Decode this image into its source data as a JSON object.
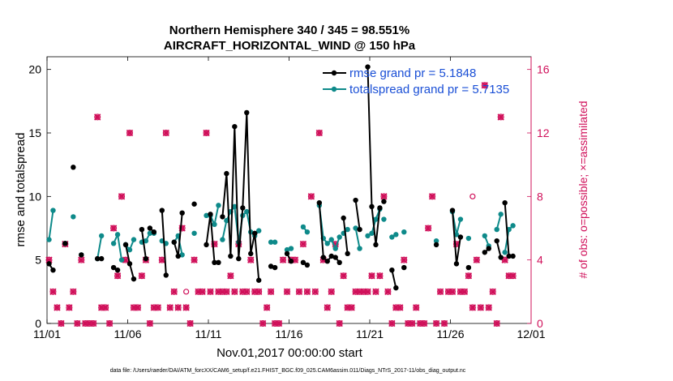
{
  "chart_data": {
    "type": "line",
    "title_line1": "Northern Hemisphere 340 / 345 = 98.551%",
    "title_line2": "AIRCRAFT_HORIZONTAL_WIND @ 150 hPa",
    "xlabel": "Nov.01,2017 00:00:00 start",
    "ylabel": "rmse and totalspread",
    "y2label": "# of obs: o=possible; ×=assimilated",
    "footer": "data file: /Users/raeder/DAI/ATM_forcXX/CAM6_setup/f.e21.FHIST_BGC.f09_025.CAM6assim.011/Diags_NTrS_2017-11/obs_diag_output.nc",
    "xlim": [
      0,
      30
    ],
    "ylim": [
      0,
      21
    ],
    "y2lim": [
      0,
      16.8
    ],
    "x_ticks": [
      0,
      5,
      10,
      15,
      20,
      25,
      30
    ],
    "x_tick_labels": [
      "11/01",
      "11/06",
      "11/11",
      "11/16",
      "11/21",
      "11/26",
      "12/01"
    ],
    "y_ticks": [
      0,
      5,
      10,
      15,
      20
    ],
    "y_tick_labels": [
      "0",
      "5",
      "10",
      "15",
      "20"
    ],
    "y2_ticks": [
      0,
      4,
      8,
      12,
      16
    ],
    "y2_tick_labels": [
      "0",
      "4",
      "8",
      "12",
      "16"
    ],
    "colors": {
      "rmse": "#000000",
      "spread": "#0e8a8a",
      "obs": "#d0105a",
      "legend_text": "#1a4fd6"
    },
    "series": [
      {
        "name": "rmse grand pr = 5.1848",
        "color": "#000000",
        "segments": [
          [
            [
              0.125,
              4.7
            ],
            [
              0.375,
              4.2
            ]
          ],
          [
            [
              1.125,
              6.3
            ]
          ],
          [
            [
              1.625,
              12.3
            ]
          ],
          [
            [
              2.125,
              5.4
            ]
          ],
          [
            [
              3.125,
              5.1
            ],
            [
              3.375,
              5.1
            ]
          ],
          [
            [
              4.125,
              4.4
            ],
            [
              4.375,
              4.2
            ]
          ],
          [
            [
              4.875,
              6.2
            ],
            [
              5.125,
              4.7
            ],
            [
              5.375,
              3.5
            ]
          ],
          [
            [
              5.875,
              7.4
            ],
            [
              6.125,
              5.1
            ]
          ],
          [
            [
              6.375,
              7.5
            ],
            [
              6.625,
              7.2
            ]
          ],
          [
            [
              7.125,
              8.9
            ],
            [
              7.375,
              3.8
            ]
          ],
          [
            [
              7.875,
              6.4
            ],
            [
              8.125,
              5.3
            ],
            [
              8.375,
              8.7
            ]
          ],
          [
            [
              9.125,
              9.4
            ]
          ],
          [
            [
              9.875,
              6.2
            ],
            [
              10.125,
              8.6
            ],
            [
              10.375,
              4.8
            ],
            [
              10.625,
              4.8
            ]
          ],
          [
            [
              10.875,
              8.4
            ],
            [
              11.125,
              11.8
            ],
            [
              11.375,
              5.3
            ],
            [
              11.625,
              15.5
            ],
            [
              11.875,
              5.1
            ],
            [
              12.125,
              9.1
            ],
            [
              12.375,
              16.6
            ],
            [
              12.625,
              5.5
            ],
            [
              12.875,
              7.1
            ],
            [
              13.125,
              3.4
            ]
          ],
          [
            [
              13.875,
              4.5
            ],
            [
              14.125,
              4.4
            ]
          ],
          [
            [
              14.875,
              5.5
            ],
            [
              15.125,
              4.9
            ]
          ],
          [
            [
              15.875,
              4.8
            ],
            [
              16.125,
              4.6
            ]
          ],
          [
            [
              16.875,
              9.5
            ],
            [
              17.125,
              5.2
            ],
            [
              17.375,
              4.9
            ],
            [
              17.625,
              5.3
            ],
            [
              17.875,
              5.2
            ],
            [
              18.125,
              4.8
            ]
          ],
          [
            [
              18.375,
              8.3
            ],
            [
              18.625,
              5.5
            ]
          ],
          [
            [
              19.125,
              9.7
            ],
            [
              19.375,
              7.4
            ]
          ],
          [
            [
              19.875,
              20.2
            ],
            [
              20.125,
              9.2
            ],
            [
              20.375,
              6.2
            ],
            [
              20.625,
              9.1
            ]
          ],
          [
            [
              20.875,
              9.6
            ]
          ],
          [
            [
              21.375,
              4.2
            ],
            [
              21.625,
              2.8
            ]
          ],
          [
            [
              22.125,
              4.4
            ]
          ],
          [
            [
              24.125,
              6.2
            ]
          ],
          [
            [
              25.125,
              8.9
            ],
            [
              25.375,
              4.7
            ],
            [
              25.625,
              6.8
            ]
          ],
          [
            [
              26.125,
              4.4
            ]
          ],
          [
            [
              27.125,
              5.6
            ],
            [
              27.375,
              5.9
            ]
          ],
          [
            [
              27.875,
              6.5
            ],
            [
              28.125,
              5.2
            ]
          ],
          [
            [
              28.375,
              9.5
            ],
            [
              28.625,
              5.3
            ],
            [
              28.875,
              5.3
            ]
          ]
        ]
      },
      {
        "name": "totalspread grand pr = 5.7135",
        "color": "#0e8a8a",
        "segments": [
          [
            [
              0.125,
              6.6
            ],
            [
              0.375,
              8.9
            ]
          ],
          [
            [
              1.125,
              6.3
            ]
          ],
          [
            [
              1.625,
              8.4
            ]
          ],
          [
            [
              2.125,
              5.4
            ]
          ],
          [
            [
              3.125,
              5.1
            ],
            [
              3.375,
              6.9
            ]
          ],
          [
            [
              4.125,
              6.3
            ],
            [
              4.375,
              7.0
            ],
            [
              4.625,
              5.0
            ]
          ],
          [
            [
              4.875,
              6.2
            ],
            [
              5.125,
              5.8
            ],
            [
              5.375,
              6.6
            ]
          ],
          [
            [
              5.875,
              6.4
            ],
            [
              6.125,
              6.5
            ],
            [
              6.375,
              7.1
            ],
            [
              6.625,
              7.1
            ]
          ],
          [
            [
              7.125,
              6.5
            ],
            [
              7.375,
              6.3
            ]
          ],
          [
            [
              7.875,
              6.4
            ],
            [
              8.125,
              6.9
            ],
            [
              8.375,
              5.4
            ]
          ],
          [
            [
              9.125,
              7.1
            ]
          ],
          [
            [
              9.875,
              8.5
            ],
            [
              10.125,
              8.5
            ],
            [
              10.375,
              7.8
            ],
            [
              10.625,
              9.3
            ]
          ],
          [
            [
              10.875,
              6.6
            ],
            [
              11.125,
              8.1
            ],
            [
              11.375,
              8.8
            ],
            [
              11.625,
              9.2
            ],
            [
              11.875,
              6.4
            ],
            [
              12.125,
              8.5
            ],
            [
              12.375,
              8.8
            ],
            [
              12.625,
              7.2
            ],
            [
              12.875,
              6.9
            ],
            [
              13.125,
              7.3
            ]
          ],
          [
            [
              13.875,
              6.4
            ],
            [
              14.125,
              6.4
            ]
          ],
          [
            [
              14.875,
              5.8
            ],
            [
              15.125,
              5.9
            ]
          ],
          [
            [
              15.875,
              7.6
            ],
            [
              16.125,
              7.2
            ]
          ],
          [
            [
              16.875,
              9.3
            ],
            [
              17.125,
              6.7
            ],
            [
              17.375,
              6.3
            ],
            [
              17.625,
              6.6
            ],
            [
              17.875,
              5.9
            ],
            [
              18.125,
              6.8
            ]
          ],
          [
            [
              18.375,
              7.1
            ],
            [
              18.625,
              7.4
            ]
          ],
          [
            [
              19.125,
              7.5
            ],
            [
              19.375,
              5.9
            ]
          ],
          [
            [
              19.875,
              6.9
            ],
            [
              20.125,
              7.1
            ],
            [
              20.375,
              8.2
            ],
            [
              20.625,
              9.0
            ]
          ],
          [
            [
              20.875,
              8.2
            ]
          ],
          [
            [
              21.375,
              6.8
            ],
            [
              21.625,
              7.0
            ]
          ],
          [
            [
              22.125,
              7.2
            ]
          ],
          [
            [
              24.125,
              6.5
            ]
          ],
          [
            [
              25.125,
              8.8
            ],
            [
              25.375,
              7.0
            ],
            [
              25.625,
              8.2
            ]
          ],
          [
            [
              26.125,
              6.7
            ]
          ],
          [
            [
              27.125,
              6.9
            ],
            [
              27.375,
              6.1
            ]
          ],
          [
            [
              27.875,
              7.4
            ],
            [
              28.125,
              8.6
            ]
          ],
          [
            [
              28.375,
              5.6
            ],
            [
              28.625,
              7.4
            ],
            [
              28.875,
              7.7
            ]
          ]
        ]
      }
    ],
    "obs_possible": [
      [
        0.125,
        4
      ],
      [
        0.375,
        2
      ],
      [
        0.625,
        1
      ],
      [
        0.875,
        0
      ],
      [
        1.125,
        5
      ],
      [
        1.375,
        1
      ],
      [
        1.625,
        2
      ],
      [
        1.875,
        0
      ],
      [
        2.125,
        4
      ],
      [
        2.375,
        0
      ],
      [
        2.625,
        0
      ],
      [
        2.875,
        0
      ],
      [
        3.125,
        13
      ],
      [
        3.375,
        1
      ],
      [
        3.625,
        1
      ],
      [
        3.875,
        0
      ],
      [
        4.125,
        6
      ],
      [
        4.375,
        3
      ],
      [
        4.625,
        8
      ],
      [
        4.875,
        4
      ],
      [
        5.125,
        12
      ],
      [
        5.375,
        1
      ],
      [
        5.625,
        1
      ],
      [
        5.875,
        3
      ],
      [
        6.125,
        4
      ],
      [
        6.375,
        0
      ],
      [
        6.625,
        1
      ],
      [
        6.875,
        1
      ],
      [
        7.125,
        4
      ],
      [
        7.375,
        12
      ],
      [
        7.625,
        1
      ],
      [
        7.875,
        2
      ],
      [
        8.125,
        1
      ],
      [
        8.375,
        6
      ],
      [
        8.625,
        1
      ],
      [
        8.875,
        0
      ],
      [
        9.125,
        4
      ],
      [
        9.375,
        2
      ],
      [
        9.625,
        2
      ],
      [
        9.875,
        12
      ],
      [
        10.125,
        2
      ],
      [
        10.375,
        5
      ],
      [
        10.625,
        2
      ],
      [
        10.875,
        2
      ],
      [
        11.125,
        2
      ],
      [
        11.375,
        3
      ],
      [
        11.625,
        2
      ],
      [
        11.875,
        5
      ],
      [
        12.125,
        2
      ],
      [
        12.375,
        2
      ],
      [
        12.625,
        4
      ],
      [
        12.875,
        2
      ],
      [
        13.125,
        2
      ],
      [
        13.375,
        0
      ],
      [
        13.625,
        1
      ],
      [
        13.875,
        2
      ],
      [
        14.125,
        0
      ],
      [
        14.375,
        0
      ],
      [
        14.625,
        4
      ],
      [
        14.875,
        2
      ],
      [
        15.125,
        4
      ],
      [
        15.375,
        4
      ],
      [
        15.625,
        2
      ],
      [
        15.875,
        5
      ],
      [
        16.125,
        2
      ],
      [
        16.375,
        8
      ],
      [
        16.625,
        2
      ],
      [
        16.875,
        12
      ],
      [
        17.125,
        4
      ],
      [
        17.375,
        1
      ],
      [
        17.625,
        2
      ],
      [
        17.875,
        5
      ],
      [
        18.125,
        0
      ],
      [
        18.375,
        3
      ],
      [
        18.625,
        1
      ],
      [
        18.875,
        1
      ],
      [
        19.125,
        2
      ],
      [
        19.375,
        2
      ],
      [
        19.625,
        2
      ],
      [
        19.875,
        2
      ],
      [
        20.125,
        3
      ],
      [
        20.375,
        2
      ],
      [
        20.625,
        3
      ],
      [
        20.875,
        8
      ],
      [
        21.125,
        2
      ],
      [
        21.375,
        0
      ],
      [
        21.625,
        1
      ],
      [
        21.875,
        1
      ],
      [
        22.125,
        4
      ],
      [
        22.375,
        0
      ],
      [
        22.625,
        0
      ],
      [
        22.875,
        1
      ],
      [
        23.125,
        0
      ],
      [
        23.375,
        0
      ],
      [
        23.625,
        6
      ],
      [
        23.875,
        8
      ],
      [
        24.125,
        0
      ],
      [
        24.375,
        2
      ],
      [
        24.625,
        0
      ],
      [
        24.875,
        2
      ],
      [
        25.125,
        2
      ],
      [
        25.375,
        5
      ],
      [
        25.625,
        2
      ],
      [
        25.875,
        2
      ],
      [
        26.125,
        3
      ],
      [
        26.375,
        1
      ],
      [
        26.625,
        4
      ],
      [
        26.875,
        1
      ],
      [
        27.125,
        15
      ],
      [
        27.375,
        1
      ],
      [
        27.625,
        2
      ],
      [
        27.875,
        0
      ],
      [
        28.125,
        13
      ],
      [
        28.375,
        4
      ],
      [
        28.625,
        3
      ],
      [
        28.875,
        3
      ]
    ],
    "obs_open_circles": [
      [
        8.625,
        2
      ],
      [
        26.375,
        8
      ]
    ],
    "obs_assimilated_note": "× markers coincide with o markers at nearly every time step"
  }
}
